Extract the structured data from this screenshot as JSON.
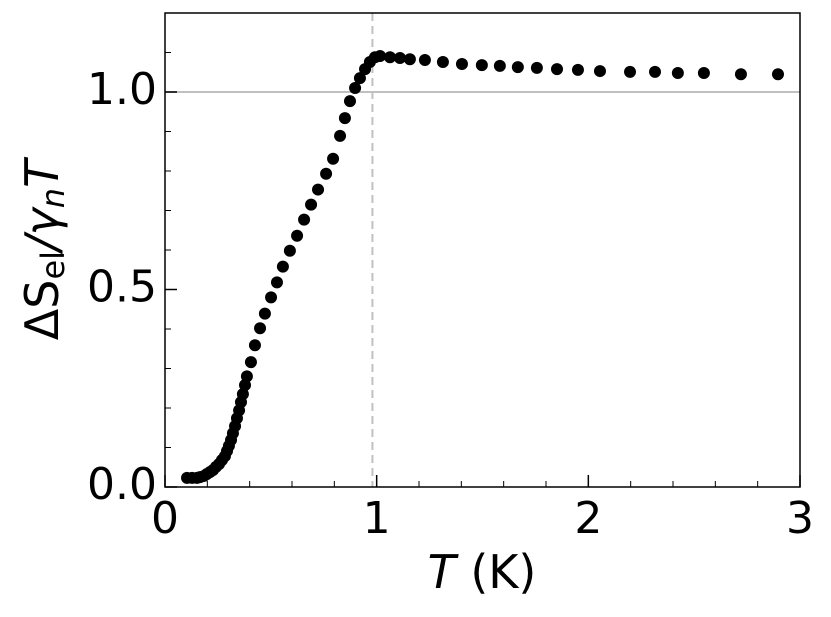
{
  "chart_data": {
    "type": "scatter",
    "xlabel": [
      "T",
      " (K)"
    ],
    "ylabel": [
      "ΔS",
      "el",
      "/γ",
      "n",
      "T"
    ],
    "x": [
      0.104,
      0.128,
      0.151,
      0.165,
      0.184,
      0.198,
      0.213,
      0.227,
      0.241,
      0.255,
      0.269,
      0.283,
      0.293,
      0.302,
      0.312,
      0.321,
      0.331,
      0.34,
      0.35,
      0.359,
      0.368,
      0.378,
      0.387,
      0.406,
      0.425,
      0.449,
      0.472,
      0.501,
      0.529,
      0.557,
      0.59,
      0.624,
      0.657,
      0.69,
      0.723,
      0.761,
      0.794,
      0.827,
      0.85,
      0.874,
      0.898,
      0.921,
      0.945,
      0.968,
      0.992,
      1.016,
      1.063,
      1.11,
      1.157,
      1.228,
      1.313,
      1.403,
      1.497,
      1.582,
      1.667,
      1.757,
      1.852,
      1.951,
      2.055,
      2.197,
      2.315,
      2.423,
      2.546,
      2.721,
      2.896
    ],
    "values": [
      0.023,
      0.023,
      0.023,
      0.025,
      0.028,
      0.033,
      0.038,
      0.043,
      0.051,
      0.058,
      0.068,
      0.078,
      0.091,
      0.104,
      0.119,
      0.136,
      0.154,
      0.174,
      0.194,
      0.215,
      0.235,
      0.258,
      0.28,
      0.316,
      0.359,
      0.402,
      0.439,
      0.48,
      0.518,
      0.558,
      0.598,
      0.636,
      0.677,
      0.715,
      0.753,
      0.793,
      0.831,
      0.889,
      0.934,
      0.977,
      1.01,
      1.035,
      1.058,
      1.076,
      1.088,
      1.091,
      1.088,
      1.086,
      1.083,
      1.081,
      1.076,
      1.071,
      1.068,
      1.066,
      1.063,
      1.061,
      1.058,
      1.056,
      1.053,
      1.051,
      1.051,
      1.048,
      1.048,
      1.045,
      1.045
    ],
    "color": "#000000",
    "xlim": [
      0,
      3
    ],
    "ylim": [
      0,
      1.2
    ],
    "xticks": [
      0,
      1,
      2,
      3
    ],
    "yticks": [
      {
        "value": 0,
        "label": "0.0"
      },
      {
        "value": 0.5,
        "label": "0.5"
      },
      {
        "value": 1,
        "label": "1.0"
      }
    ],
    "xticks_minor": [
      0.2,
      0.4,
      0.6,
      0.8,
      1.2,
      1.4,
      1.6,
      1.8,
      2.2,
      2.4,
      2.6,
      2.8
    ],
    "yticks_minor": [
      0.1,
      0.2,
      0.3,
      0.4,
      0.6,
      0.7,
      0.8,
      0.9,
      1.1
    ],
    "hline": 1.0,
    "vline": 0.98
  }
}
